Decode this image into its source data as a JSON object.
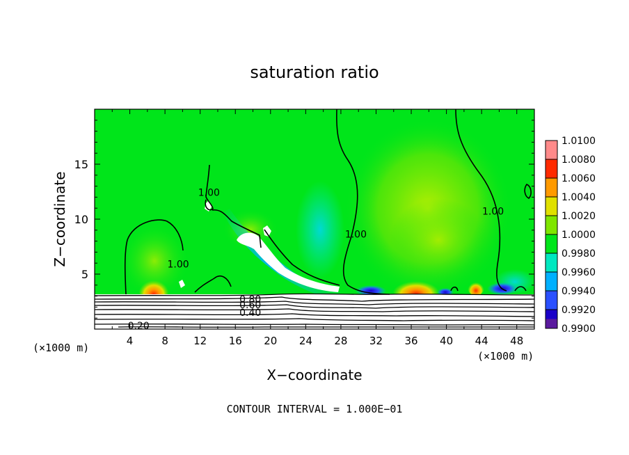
{
  "chart_data": {
    "type": "heatmap",
    "title": "saturation ratio",
    "xlabel": "X−coordinate",
    "ylabel": "Z−coordinate",
    "x_unit_left": "(×1000 m)",
    "x_unit_right": "(×1000 m)",
    "footer": "CONTOUR INTERVAL = 1.000E−01",
    "xlim": [
      0,
      50
    ],
    "ylim": [
      0,
      20
    ],
    "x_ticks": [
      4,
      8,
      12,
      16,
      20,
      24,
      28,
      32,
      36,
      40,
      44,
      48
    ],
    "x_tick_labels": [
      "4",
      "8",
      "12",
      "16",
      "20",
      "24",
      "28",
      "32",
      "36",
      "40",
      "44",
      "48"
    ],
    "y_ticks": [
      5,
      10,
      15
    ],
    "y_tick_labels": [
      "5",
      "10",
      "15"
    ],
    "colorbar": {
      "min": 0.99,
      "max": 1.01,
      "levels": [
        0.99,
        0.992,
        0.994,
        0.996,
        0.998,
        1.0,
        1.002,
        1.004,
        1.006,
        1.008,
        1.01
      ],
      "labels": [
        "0.9900",
        "0.9920",
        "0.9940",
        "0.9960",
        "0.9980",
        "1.0000",
        "1.0020",
        "1.0040",
        "1.0060",
        "1.0080",
        "1.0100"
      ],
      "colors": [
        "#5a1a9e",
        "#1a00c8",
        "#2a50ff",
        "#00b0ff",
        "#00e8c0",
        "#00e51a",
        "#7fe600",
        "#e0e000",
        "#ff9a00",
        "#ff2a00",
        "#ff8a8a"
      ]
    },
    "contour_labels": [
      {
        "text": "1.00",
        "x": 13.0,
        "z": 12.3
      },
      {
        "text": "1.00",
        "x": 9.5,
        "z": 5.8
      },
      {
        "text": "1.00",
        "x": 29.7,
        "z": 8.5
      },
      {
        "text": "1.00",
        "x": 45.3,
        "z": 10.6
      },
      {
        "text": "0.80",
        "x": 17.7,
        "z": 2.6
      },
      {
        "text": "0.60",
        "x": 17.7,
        "z": 2.1
      },
      {
        "text": "0.40",
        "x": 17.7,
        "z": 1.4
      },
      {
        "text": "0.20",
        "x": 5.0,
        "z": 0.2
      }
    ]
  }
}
